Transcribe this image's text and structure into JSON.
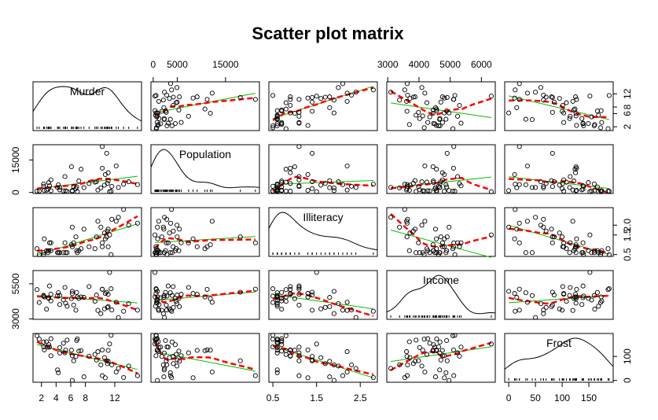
{
  "chart_data": {
    "type": "scatter",
    "subtype": "scatter-plot-matrix",
    "title": "Scatter plot matrix",
    "variables": [
      "Murder",
      "Population",
      "Illiteracy",
      "Income",
      "Frost"
    ],
    "diagonal": "density",
    "fits": [
      {
        "name": "linear fit",
        "color": "#00c000",
        "style": "solid"
      },
      {
        "name": "smoothed fit",
        "color": "#ff0000",
        "style": "dashed"
      }
    ],
    "ranges": {
      "Murder": [
        1.4,
        15.1
      ],
      "Population": [
        365,
        21198
      ],
      "Illiteracy": [
        0.5,
        2.8
      ],
      "Income": [
        3098,
        6315
      ],
      "Frost": [
        0,
        188
      ]
    },
    "axis_ticks": {
      "Murder": [
        "2",
        "4",
        "6",
        "8",
        "12"
      ],
      "Population": [
        "0",
        "5000",
        "15000"
      ],
      "Illiteracy": [
        "0.5",
        "1.5",
        "2.5"
      ],
      "Income": [
        "3000",
        "4000",
        "5000",
        "6000"
      ],
      "Frost": [
        "0",
        "50",
        "100",
        "150"
      ]
    },
    "left_axis_ticks": {
      "Population": [
        "0",
        "15000"
      ],
      "Income": [
        "3000",
        "5500"
      ]
    },
    "right_axis_ticks": {
      "Murder": [
        "2",
        "6",
        "8",
        "12"
      ],
      "Illiteracy": [
        "0.5",
        "1.5",
        "2.0"
      ],
      "Frost": [
        "0",
        "100"
      ]
    },
    "axis_placement": {
      "Murder": "bottom",
      "Population": "top",
      "Illiteracy": "bottom",
      "Income": "top",
      "Frost": "bottom"
    },
    "states": {
      "Murder": [
        15.1,
        11.3,
        7.8,
        10.1,
        10.3,
        6.8,
        3.1,
        6.2,
        10.7,
        13.9,
        6.2,
        5.3,
        10.3,
        7.1,
        2.3,
        4.5,
        10.6,
        13.2,
        2.7,
        8.5,
        3.3,
        11.1,
        2.3,
        12.5,
        9.3,
        5.0,
        2.9,
        11.5,
        3.3,
        5.2,
        9.7,
        10.9,
        11.1,
        1.4,
        7.4,
        6.4,
        4.2,
        6.1,
        2.4,
        11.6,
        1.7,
        11.0,
        12.2,
        4.5,
        5.5,
        9.5,
        4.3,
        6.7,
        3.0,
        6.9
      ],
      "Population": [
        3615,
        365,
        2212,
        2110,
        21198,
        2541,
        3100,
        579,
        8277,
        4931,
        868,
        813,
        11197,
        5313,
        2861,
        2280,
        3387,
        3806,
        1058,
        4122,
        5814,
        9111,
        3921,
        2341,
        4767,
        746,
        1544,
        590,
        812,
        7333,
        1144,
        18076,
        5441,
        637,
        10735,
        2715,
        2284,
        11860,
        931,
        2816,
        681,
        4173,
        12237,
        1203,
        472,
        4981,
        3559,
        1799,
        4589,
        376
      ],
      "Illiteracy": [
        2.1,
        1.5,
        1.8,
        1.9,
        1.1,
        0.7,
        1.1,
        0.9,
        1.3,
        2.0,
        1.9,
        0.6,
        0.9,
        0.7,
        0.5,
        0.6,
        1.6,
        2.8,
        0.7,
        0.9,
        1.1,
        0.9,
        0.6,
        2.4,
        0.8,
        0.6,
        0.6,
        0.5,
        0.7,
        1.1,
        2.2,
        1.4,
        1.8,
        0.8,
        0.8,
        1.1,
        0.6,
        1.0,
        1.3,
        2.3,
        0.5,
        1.7,
        2.2,
        0.6,
        0.6,
        1.4,
        0.6,
        1.4,
        0.7,
        0.6
      ],
      "Income": [
        3624,
        6315,
        4530,
        3378,
        5114,
        4884,
        5348,
        4809,
        4815,
        4091,
        4963,
        4119,
        5107,
        4458,
        4628,
        4669,
        3712,
        3545,
        3694,
        5299,
        4755,
        4751,
        4675,
        3098,
        4254,
        4347,
        4508,
        5149,
        4281,
        5237,
        3601,
        4903,
        3875,
        5087,
        4561,
        3983,
        4660,
        4449,
        4558,
        3635,
        4167,
        3821,
        4188,
        4022,
        3907,
        4701,
        4864,
        3617,
        4468,
        4566
      ],
      "Frost": [
        20,
        152,
        15,
        65,
        20,
        166,
        139,
        103,
        11,
        60,
        0,
        126,
        127,
        122,
        140,
        114,
        95,
        12,
        161,
        101,
        103,
        125,
        160,
        50,
        108,
        155,
        139,
        188,
        174,
        115,
        120,
        82,
        80,
        186,
        124,
        82,
        44,
        126,
        127,
        65,
        172,
        70,
        35,
        137,
        168,
        85,
        32,
        100,
        149,
        173
      ]
    }
  }
}
